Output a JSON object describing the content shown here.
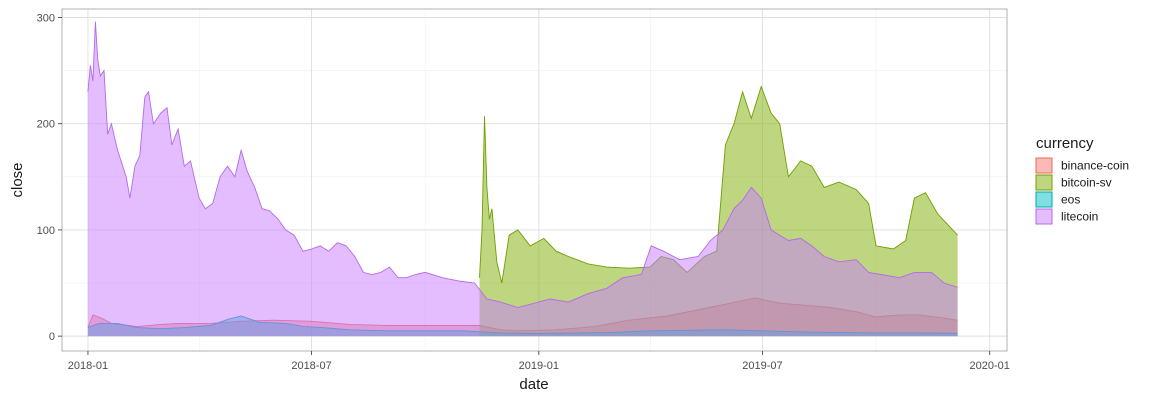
{
  "chart_data": {
    "type": "area",
    "xlabel": "date",
    "ylabel": "close",
    "x_ticks": [
      "2018-01",
      "2018-07",
      "2019-01",
      "2019-07",
      "2020-01"
    ],
    "y_ticks": [
      0,
      100,
      200,
      300
    ],
    "xlim": [
      "2017-12-11",
      "2020-01-15"
    ],
    "ylim": [
      -14,
      308
    ],
    "grid": true,
    "legend": {
      "title": "currency",
      "position": "right",
      "entries": [
        "binance-coin",
        "bitcoin-sv",
        "eos",
        "litecoin"
      ]
    },
    "series": [
      {
        "name": "binance-coin",
        "fill": "#f8766d",
        "stroke": "#e8685f",
        "points": [
          [
            "2018-01-01",
            8
          ],
          [
            "2018-01-05",
            20
          ],
          [
            "2018-01-12",
            17
          ],
          [
            "2018-01-20",
            12
          ],
          [
            "2018-02-10",
            9
          ],
          [
            "2018-03-01",
            11
          ],
          [
            "2018-03-15",
            12
          ],
          [
            "2018-04-10",
            12
          ],
          [
            "2018-05-05",
            14
          ],
          [
            "2018-06-01",
            15
          ],
          [
            "2018-07-01",
            14
          ],
          [
            "2018-08-01",
            11
          ],
          [
            "2018-09-01",
            10
          ],
          [
            "2018-10-01",
            10
          ],
          [
            "2018-11-14",
            10
          ],
          [
            "2018-12-01",
            6
          ],
          [
            "2018-12-15",
            5
          ],
          [
            "2019-01-15",
            6
          ],
          [
            "2019-02-15",
            9
          ],
          [
            "2019-03-15",
            15
          ],
          [
            "2019-04-15",
            19
          ],
          [
            "2019-05-15",
            26
          ],
          [
            "2019-06-05",
            31
          ],
          [
            "2019-06-25",
            36
          ],
          [
            "2019-07-15",
            31
          ],
          [
            "2019-08-05",
            29
          ],
          [
            "2019-08-25",
            27
          ],
          [
            "2019-09-15",
            23
          ],
          [
            "2019-10-01",
            18
          ],
          [
            "2019-10-20",
            20
          ],
          [
            "2019-11-05",
            20
          ],
          [
            "2019-11-25",
            17
          ],
          [
            "2019-12-06",
            15
          ]
        ]
      },
      {
        "name": "bitcoin-sv",
        "fill": "#7cae00",
        "stroke": "#6f9f00",
        "points": [
          [
            "2018-11-14",
            55
          ],
          [
            "2018-11-16",
            100
          ],
          [
            "2018-11-18",
            207
          ],
          [
            "2018-11-20",
            140
          ],
          [
            "2018-11-22",
            110
          ],
          [
            "2018-11-24",
            120
          ],
          [
            "2018-11-28",
            70
          ],
          [
            "2018-12-02",
            50
          ],
          [
            "2018-12-08",
            95
          ],
          [
            "2018-12-15",
            100
          ],
          [
            "2018-12-25",
            85
          ],
          [
            "2019-01-05",
            92
          ],
          [
            "2019-01-15",
            80
          ],
          [
            "2019-01-25",
            75
          ],
          [
            "2019-02-10",
            68
          ],
          [
            "2019-02-25",
            65
          ],
          [
            "2019-03-15",
            64
          ],
          [
            "2019-04-01",
            65
          ],
          [
            "2019-04-10",
            75
          ],
          [
            "2019-04-20",
            72
          ],
          [
            "2019-05-01",
            60
          ],
          [
            "2019-05-15",
            75
          ],
          [
            "2019-05-25",
            80
          ],
          [
            "2019-06-01",
            180
          ],
          [
            "2019-06-08",
            200
          ],
          [
            "2019-06-15",
            230
          ],
          [
            "2019-06-22",
            205
          ],
          [
            "2019-06-30",
            235
          ],
          [
            "2019-07-08",
            210
          ],
          [
            "2019-07-15",
            200
          ],
          [
            "2019-07-22",
            150
          ],
          [
            "2019-08-01",
            165
          ],
          [
            "2019-08-10",
            160
          ],
          [
            "2019-08-20",
            140
          ],
          [
            "2019-09-01",
            145
          ],
          [
            "2019-09-15",
            138
          ],
          [
            "2019-09-25",
            125
          ],
          [
            "2019-10-01",
            85
          ],
          [
            "2019-10-15",
            82
          ],
          [
            "2019-10-25",
            90
          ],
          [
            "2019-11-01",
            130
          ],
          [
            "2019-11-10",
            135
          ],
          [
            "2019-11-20",
            115
          ],
          [
            "2019-11-28",
            105
          ],
          [
            "2019-12-06",
            95
          ]
        ]
      },
      {
        "name": "eos",
        "fill": "#00bfc4",
        "stroke": "#00a9ae",
        "points": [
          [
            "2018-01-01",
            8
          ],
          [
            "2018-01-10",
            12
          ],
          [
            "2018-01-25",
            12
          ],
          [
            "2018-02-10",
            8
          ],
          [
            "2018-03-01",
            7
          ],
          [
            "2018-03-20",
            8
          ],
          [
            "2018-04-10",
            10
          ],
          [
            "2018-04-25",
            16
          ],
          [
            "2018-05-05",
            19
          ],
          [
            "2018-05-20",
            13
          ],
          [
            "2018-06-10",
            12
          ],
          [
            "2018-06-25",
            9
          ],
          [
            "2018-07-10",
            8
          ],
          [
            "2018-08-01",
            6
          ],
          [
            "2018-09-01",
            5
          ],
          [
            "2018-10-01",
            5
          ],
          [
            "2018-11-01",
            5
          ],
          [
            "2018-12-01",
            3
          ],
          [
            "2019-01-01",
            2.5
          ],
          [
            "2019-02-01",
            3
          ],
          [
            "2019-03-01",
            3.5
          ],
          [
            "2019-04-01",
            5
          ],
          [
            "2019-05-01",
            5.5
          ],
          [
            "2019-06-01",
            6
          ],
          [
            "2019-07-01",
            5
          ],
          [
            "2019-08-01",
            4
          ],
          [
            "2019-09-01",
            3.5
          ],
          [
            "2019-10-01",
            3
          ],
          [
            "2019-11-01",
            3
          ],
          [
            "2019-12-06",
            2.8
          ]
        ]
      },
      {
        "name": "litecoin",
        "fill": "#c77cff",
        "stroke": "#b46ae8",
        "points": [
          [
            "2018-01-01",
            230
          ],
          [
            "2018-01-03",
            255
          ],
          [
            "2018-01-05",
            240
          ],
          [
            "2018-01-07",
            296
          ],
          [
            "2018-01-09",
            260
          ],
          [
            "2018-01-11",
            245
          ],
          [
            "2018-01-14",
            250
          ],
          [
            "2018-01-17",
            190
          ],
          [
            "2018-01-20",
            200
          ],
          [
            "2018-01-25",
            175
          ],
          [
            "2018-02-01",
            150
          ],
          [
            "2018-02-04",
            130
          ],
          [
            "2018-02-08",
            160
          ],
          [
            "2018-02-12",
            170
          ],
          [
            "2018-02-16",
            225
          ],
          [
            "2018-02-19",
            230
          ],
          [
            "2018-02-23",
            200
          ],
          [
            "2018-03-01",
            210
          ],
          [
            "2018-03-06",
            215
          ],
          [
            "2018-03-10",
            180
          ],
          [
            "2018-03-15",
            195
          ],
          [
            "2018-03-20",
            160
          ],
          [
            "2018-03-25",
            165
          ],
          [
            "2018-04-01",
            130
          ],
          [
            "2018-04-06",
            120
          ],
          [
            "2018-04-12",
            125
          ],
          [
            "2018-04-18",
            150
          ],
          [
            "2018-04-24",
            160
          ],
          [
            "2018-04-30",
            150
          ],
          [
            "2018-05-05",
            175
          ],
          [
            "2018-05-10",
            155
          ],
          [
            "2018-05-16",
            140
          ],
          [
            "2018-05-22",
            120
          ],
          [
            "2018-05-28",
            118
          ],
          [
            "2018-06-04",
            110
          ],
          [
            "2018-06-10",
            100
          ],
          [
            "2018-06-17",
            95
          ],
          [
            "2018-06-24",
            80
          ],
          [
            "2018-07-01",
            82
          ],
          [
            "2018-07-08",
            85
          ],
          [
            "2018-07-15",
            80
          ],
          [
            "2018-07-22",
            88
          ],
          [
            "2018-07-29",
            85
          ],
          [
            "2018-08-05",
            75
          ],
          [
            "2018-08-12",
            60
          ],
          [
            "2018-08-19",
            58
          ],
          [
            "2018-08-26",
            60
          ],
          [
            "2018-09-02",
            65
          ],
          [
            "2018-09-09",
            55
          ],
          [
            "2018-09-16",
            55
          ],
          [
            "2018-09-23",
            58
          ],
          [
            "2018-10-01",
            60
          ],
          [
            "2018-10-15",
            55
          ],
          [
            "2018-10-28",
            52
          ],
          [
            "2018-11-10",
            50
          ],
          [
            "2018-11-20",
            35
          ],
          [
            "2018-12-01",
            32
          ],
          [
            "2018-12-15",
            27
          ],
          [
            "2018-12-25",
            30
          ],
          [
            "2019-01-10",
            35
          ],
          [
            "2019-01-25",
            32
          ],
          [
            "2019-02-10",
            40
          ],
          [
            "2019-02-25",
            45
          ],
          [
            "2019-03-10",
            55
          ],
          [
            "2019-03-25",
            58
          ],
          [
            "2019-04-02",
            85
          ],
          [
            "2019-04-12",
            80
          ],
          [
            "2019-04-25",
            72
          ],
          [
            "2019-05-10",
            75
          ],
          [
            "2019-05-20",
            90
          ],
          [
            "2019-05-30",
            100
          ],
          [
            "2019-06-08",
            120
          ],
          [
            "2019-06-15",
            128
          ],
          [
            "2019-06-22",
            140
          ],
          [
            "2019-06-30",
            130
          ],
          [
            "2019-07-08",
            100
          ],
          [
            "2019-07-15",
            95
          ],
          [
            "2019-07-22",
            90
          ],
          [
            "2019-08-01",
            92
          ],
          [
            "2019-08-10",
            85
          ],
          [
            "2019-08-20",
            75
          ],
          [
            "2019-09-01",
            70
          ],
          [
            "2019-09-15",
            72
          ],
          [
            "2019-09-25",
            60
          ],
          [
            "2019-10-05",
            58
          ],
          [
            "2019-10-20",
            55
          ],
          [
            "2019-11-01",
            60
          ],
          [
            "2019-11-15",
            60
          ],
          [
            "2019-11-25",
            50
          ],
          [
            "2019-12-06",
            46
          ]
        ]
      }
    ]
  }
}
